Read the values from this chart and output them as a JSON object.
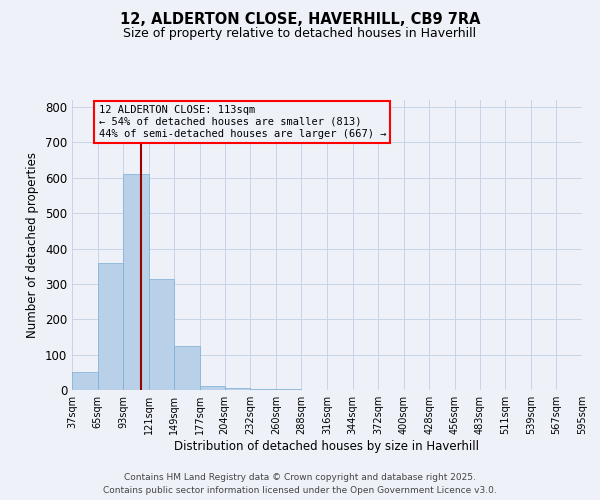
{
  "title": "12, ALDERTON CLOSE, HAVERHILL, CB9 7RA",
  "subtitle": "Size of property relative to detached houses in Haverhill",
  "xlabel": "Distribution of detached houses by size in Haverhill",
  "ylabel": "Number of detached properties",
  "bin_edges": [
    37,
    65,
    93,
    121,
    149,
    177,
    204,
    232,
    260,
    288,
    316,
    344,
    372,
    400,
    428,
    456,
    483,
    511,
    539,
    567,
    595
  ],
  "bin_labels": [
    "37sqm",
    "65sqm",
    "93sqm",
    "121sqm",
    "149sqm",
    "177sqm",
    "204sqm",
    "232sqm",
    "260sqm",
    "288sqm",
    "316sqm",
    "344sqm",
    "372sqm",
    "400sqm",
    "428sqm",
    "456sqm",
    "483sqm",
    "511sqm",
    "539sqm",
    "567sqm",
    "595sqm"
  ],
  "bar_heights": [
    50,
    360,
    610,
    315,
    125,
    10,
    5,
    3,
    2,
    1,
    1,
    1,
    1,
    1,
    0,
    0,
    0,
    0,
    0,
    0
  ],
  "bar_color": "#b8d0e8",
  "bar_edgecolor": "#7aaed6",
  "vline_x": 113,
  "vline_color": "#990000",
  "ylim": [
    0,
    820
  ],
  "yticks": [
    0,
    100,
    200,
    300,
    400,
    500,
    600,
    700,
    800
  ],
  "grid_color": "#c8d4e8",
  "annotation_text": "12 ALDERTON CLOSE: 113sqm\n← 54% of detached houses are smaller (813)\n44% of semi-detached houses are larger (667) →",
  "bg_color": "#eef2f8",
  "footer_line1": "Contains HM Land Registry data © Crown copyright and database right 2025.",
  "footer_line2": "Contains public sector information licensed under the Open Government Licence v3.0."
}
